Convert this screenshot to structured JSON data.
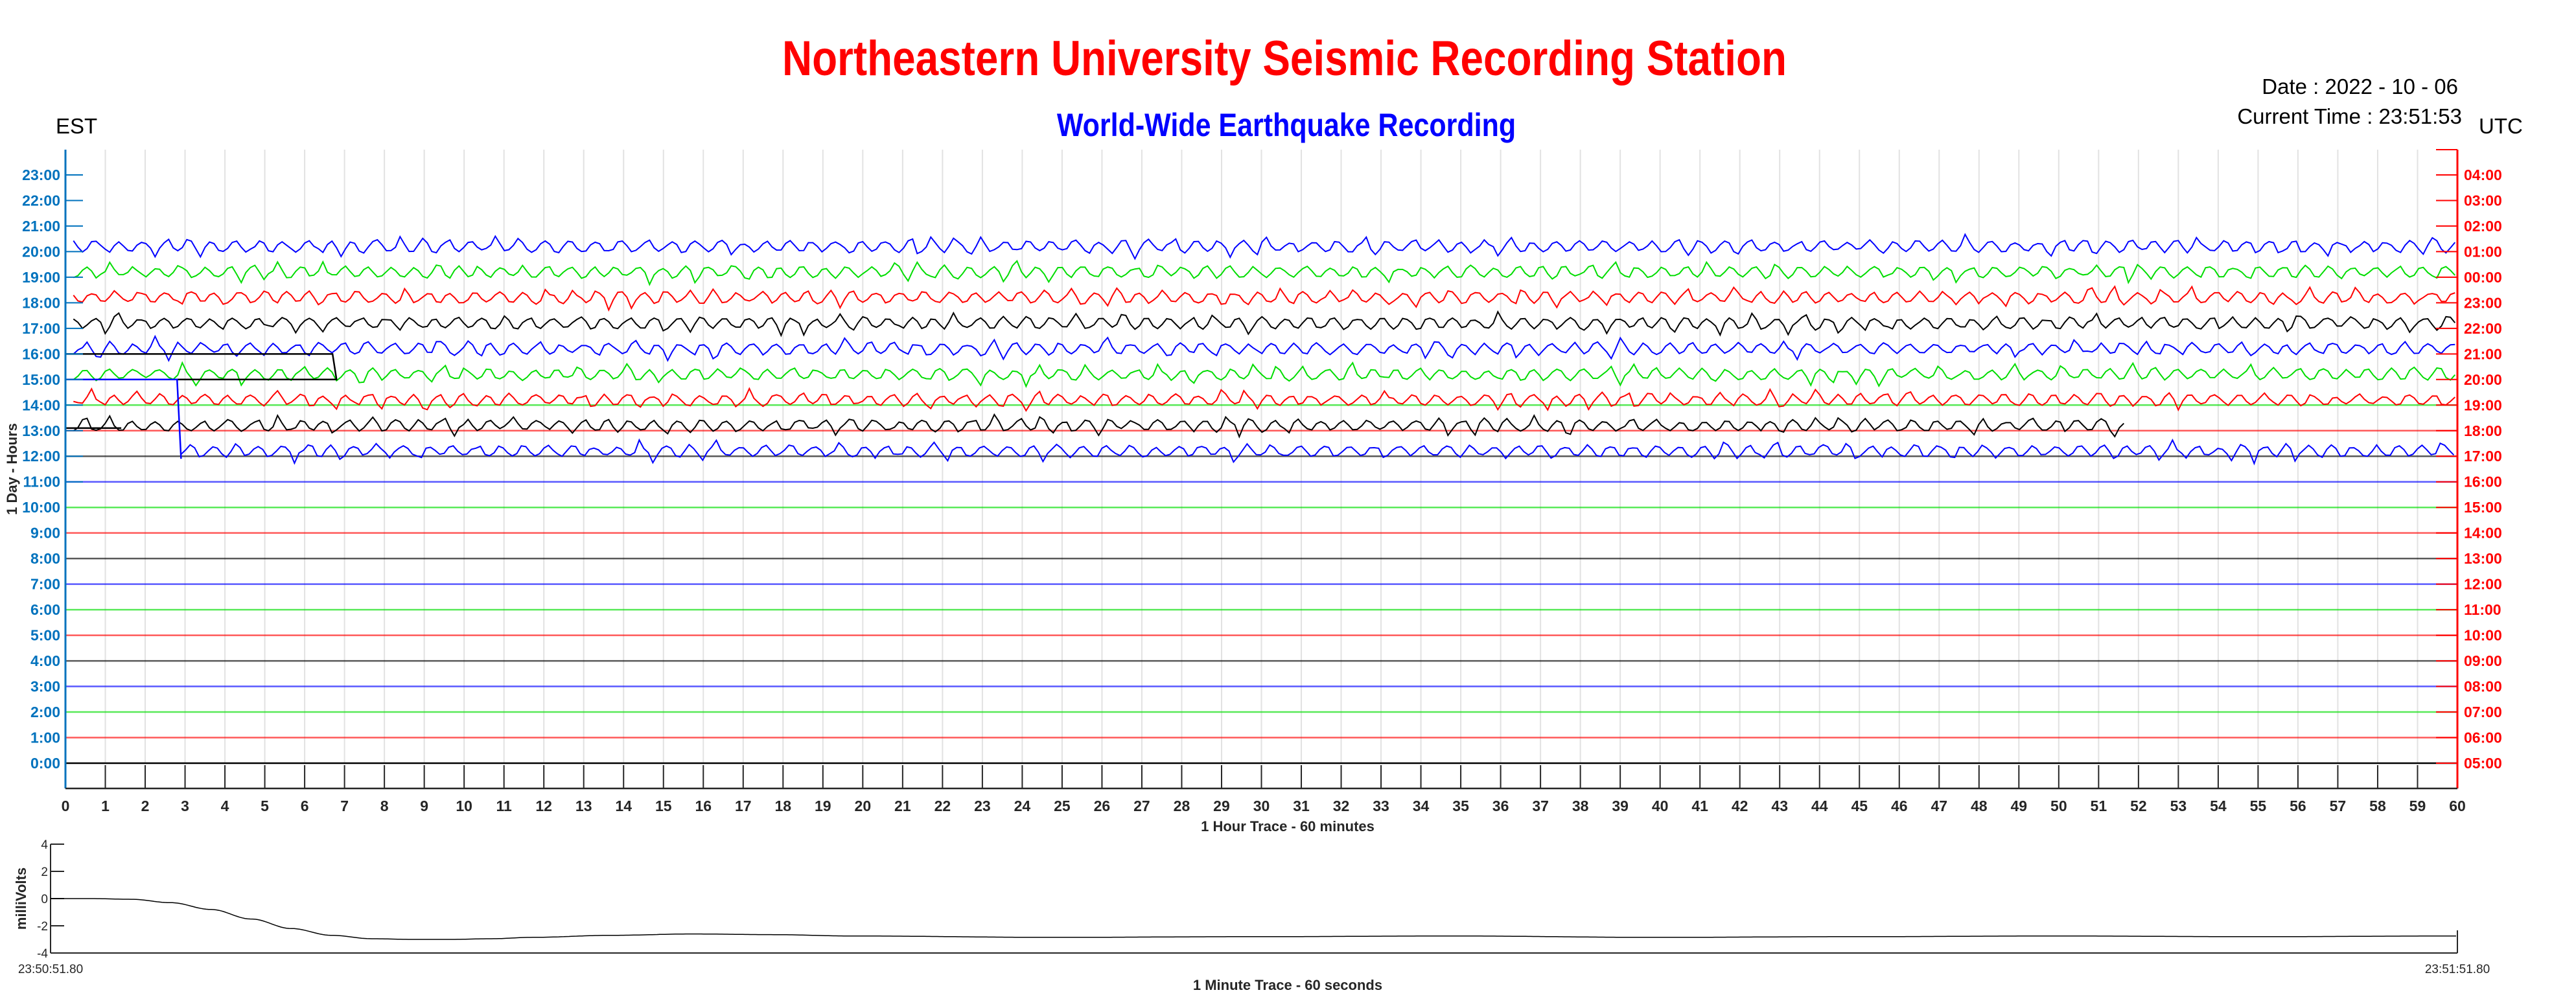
{
  "header": {
    "title": "Northeastern University Seismic Recording Station",
    "subtitle": "World-Wide Earthquake Recording",
    "date": "Date : 2022 - 10 - 06",
    "current_time": "Current Time : 23:51:53",
    "left_zone": "EST",
    "right_zone": "UTC"
  },
  "colors": {
    "title": "#FF0000",
    "subtitle": "#0000FF",
    "left_axis": "#0072BD",
    "right_axis": "#FF0000",
    "trace_cycle": [
      "#0000FF",
      "#00DD00",
      "#FF0000",
      "#000000"
    ]
  },
  "chart_data": [
    {
      "type": "line",
      "title": "1 Hour Trace - 60 minutes",
      "xlabel": "1 Hour Trace - 60 minutes",
      "ylabel": "1 Day - Hours",
      "xlim": [
        0,
        60
      ],
      "ylim": [
        -1,
        24
      ],
      "grid": "vertical, every minute",
      "x_ticks": [
        "0",
        "1",
        "2",
        "3",
        "4",
        "5",
        "6",
        "7",
        "8",
        "9",
        "10",
        "11",
        "12",
        "13",
        "14",
        "15",
        "16",
        "17",
        "18",
        "19",
        "20",
        "21",
        "22",
        "23",
        "24",
        "25",
        "26",
        "27",
        "28",
        "29",
        "30",
        "31",
        "32",
        "33",
        "34",
        "35",
        "36",
        "37",
        "38",
        "39",
        "40",
        "41",
        "42",
        "43",
        "44",
        "45",
        "46",
        "47",
        "48",
        "49",
        "50",
        "51",
        "52",
        "53",
        "54",
        "55",
        "56",
        "57",
        "58",
        "59",
        "60"
      ],
      "left_ticks": [
        "0:00",
        "1:00",
        "2:00",
        "3:00",
        "4:00",
        "5:00",
        "6:00",
        "7:00",
        "8:00",
        "9:00",
        "10:00",
        "11:00",
        "12:00",
        "13:00",
        "14:00",
        "15:00",
        "16:00",
        "17:00",
        "18:00",
        "19:00",
        "20:00",
        "21:00",
        "22:00",
        "23:00"
      ],
      "right_ticks": [
        "05:00",
        "06:00",
        "07:00",
        "08:00",
        "09:00",
        "10:00",
        "11:00",
        "12:00",
        "13:00",
        "14:00",
        "15:00",
        "16:00",
        "17:00",
        "18:00",
        "19:00",
        "20:00",
        "21:00",
        "22:00",
        "23:00",
        "00:00",
        "01:00",
        "02:00",
        "03:00",
        "04:00"
      ],
      "traces": [
        {
          "hour": 20,
          "color": "#0000FF",
          "start_min": 0.2,
          "end_min": 60
        },
        {
          "hour": 19,
          "color": "#00DD00",
          "start_min": 0.2,
          "end_min": 60
        },
        {
          "hour": 18,
          "color": "#FF0000",
          "start_min": 0.2,
          "end_min": 60
        },
        {
          "hour": 17,
          "color": "#000000",
          "start_min": 0.2,
          "end_min": 60
        },
        {
          "hour": 16,
          "color": "#0000FF",
          "start_min": 0.2,
          "end_min": 60
        },
        {
          "hour": 15,
          "color": "#00DD00",
          "start_min": 0.2,
          "end_min": 60
        },
        {
          "hour": 14,
          "color": "#FF0000",
          "start_min": 0.2,
          "end_min": 60
        },
        {
          "hour": 13,
          "color": "#000000",
          "start_min": 0.2,
          "end_min": 51.7
        },
        {
          "hour": 12,
          "color": "#0000FF",
          "start_min": 2.9,
          "end_min": 60
        }
      ],
      "baselines": [
        {
          "hour": 14,
          "color": "#00DD00"
        },
        {
          "hour": 13,
          "color": "#FF0000"
        },
        {
          "hour": 12,
          "color": "#000000"
        },
        {
          "hour": 11,
          "color": "#0000FF"
        },
        {
          "hour": 10,
          "color": "#00DD00"
        },
        {
          "hour": 9,
          "color": "#FF0000"
        },
        {
          "hour": 8,
          "color": "#000000"
        },
        {
          "hour": 7,
          "color": "#0000FF"
        },
        {
          "hour": 6,
          "color": "#00DD00"
        },
        {
          "hour": 5,
          "color": "#FF0000"
        },
        {
          "hour": 4,
          "color": "#000000"
        },
        {
          "hour": 3,
          "color": "#0000FF"
        },
        {
          "hour": 2,
          "color": "#00DD00"
        },
        {
          "hour": 1,
          "color": "#FF0000"
        }
      ],
      "artifacts": [
        {
          "color": "#000000",
          "points": [
            [
              0,
              16
            ],
            [
              6.7,
              16
            ],
            [
              6.8,
              15
            ],
            [
              0,
              15
            ]
          ]
        },
        {
          "color": "#0000FF",
          "points": [
            [
              0,
              15
            ],
            [
              2.8,
              15
            ],
            [
              2.9,
              11.9
            ]
          ]
        },
        {
          "color": "#000000",
          "points": [
            [
              0,
              13.1
            ],
            [
              1.4,
              13.1
            ]
          ]
        }
      ]
    },
    {
      "type": "line",
      "title": "1 Minute Trace  - 60 seconds",
      "xlabel": "1 Minute Trace  - 60 seconds",
      "ylabel": "milliVolts",
      "ylim": [
        -4,
        4
      ],
      "y_ticks": [
        "4",
        "2",
        "0",
        "-2",
        "-4"
      ],
      "x_start_label": "23:50:51.80",
      "x_end_label": "23:51:51.80",
      "x_seconds": [
        0,
        1,
        2,
        3,
        4,
        5,
        6,
        7,
        8,
        9,
        10,
        11,
        12,
        14,
        16,
        18,
        20,
        25,
        30,
        35,
        40,
        45,
        50,
        55,
        60
      ],
      "values": [
        0,
        0,
        -0.05,
        -0.3,
        -0.8,
        -1.5,
        -2.2,
        -2.7,
        -2.95,
        -3.0,
        -3.0,
        -2.95,
        -2.85,
        -2.7,
        -2.6,
        -2.65,
        -2.75,
        -2.85,
        -2.8,
        -2.75,
        -2.85,
        -2.8,
        -2.75,
        -2.8,
        -2.75
      ]
    }
  ]
}
